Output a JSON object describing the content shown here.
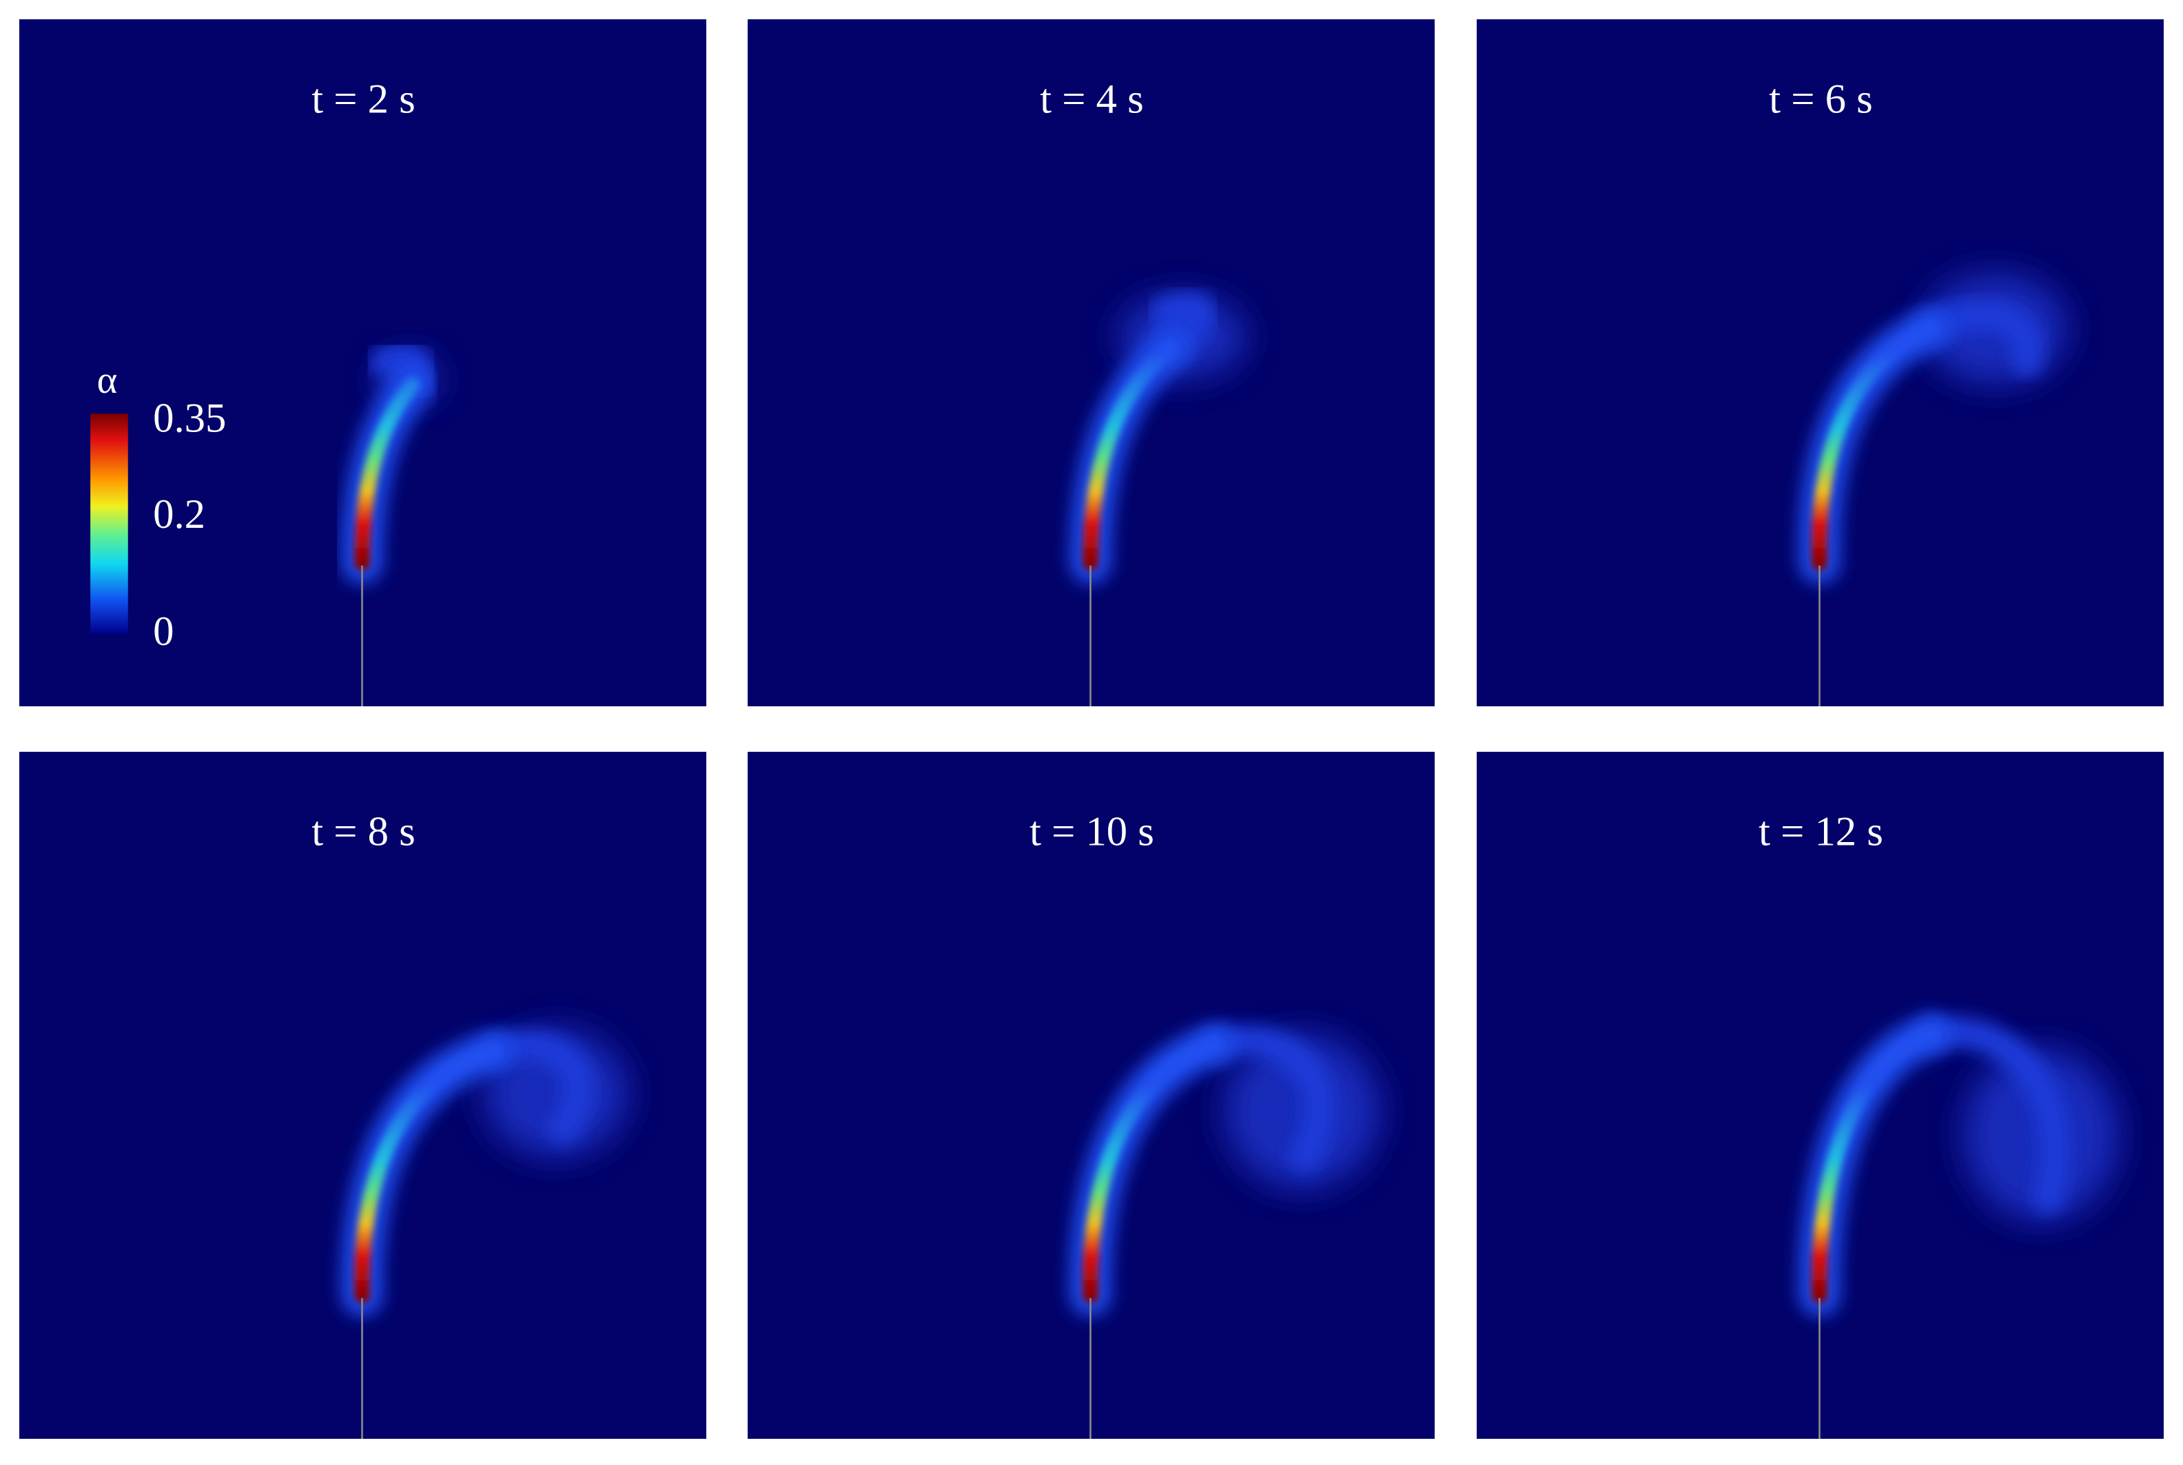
{
  "panels": [
    {
      "title": "t = 2 s"
    },
    {
      "title": "t = 4 s"
    },
    {
      "title": "t = 6 s"
    },
    {
      "title": "t = 8 s"
    },
    {
      "title": "t = 10 s"
    },
    {
      "title": "t = 12 s"
    }
  ],
  "colorbar": {
    "label": "α",
    "ticks": [
      "0.35",
      "0.2",
      "0"
    ]
  }
}
